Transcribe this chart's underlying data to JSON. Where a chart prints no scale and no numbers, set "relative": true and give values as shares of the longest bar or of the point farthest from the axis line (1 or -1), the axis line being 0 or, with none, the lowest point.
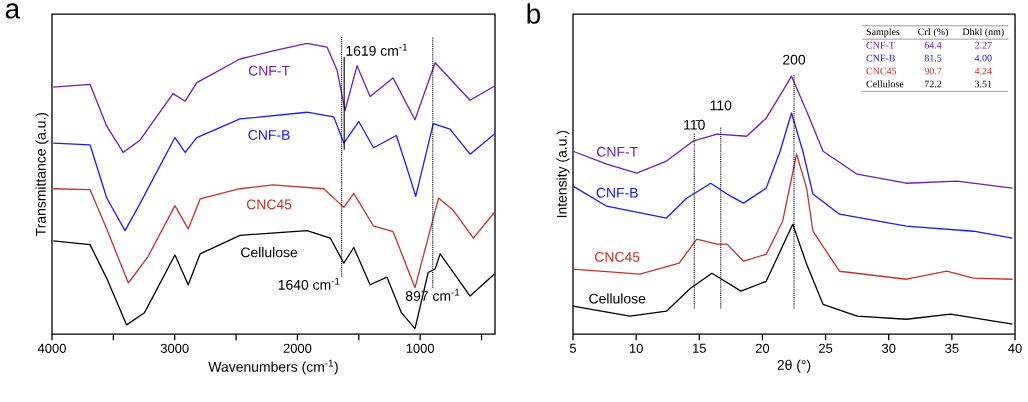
{
  "chart_data": [
    {
      "type": "line",
      "title": "a",
      "xlabel": "Wavenumbers (cm$^{-1}$)",
      "ylabel": "Transmittance (a.u.)",
      "relative": true,
      "xlim": [
        4000,
        390
      ],
      "xticks": [
        4000,
        {
          "value": 3500,
          "label": null
        },
        3000,
        {
          "value": 2500,
          "label": null
        },
        2000,
        {
          "value": 1500,
          "label": null
        },
        1000,
        {
          "value": 500,
          "label": null
        }
      ],
      "series": [
        {
          "name": "CNF-T",
          "color": "#6a1fc0",
          "x": [
            3990,
            3690,
            3554,
            3420,
            3283,
            3014,
            2915,
            2820,
            2468,
            2199,
            1922,
            1759,
            1677,
            1612,
            1514,
            1408,
            1221,
            1042,
            878,
            593,
            392
          ],
          "values": [
            0.849,
            0.859,
            0.715,
            0.625,
            0.667,
            0.827,
            0.801,
            0.865,
            0.946,
            0.974,
            1.0,
            0.987,
            0.907,
            0.769,
            0.923,
            0.817,
            0.881,
            0.737,
            0.933,
            0.804,
            0.853
          ]
        },
        {
          "name": "CNF-B",
          "color": "#1a1aff",
          "x": [
            3990,
            3690,
            3554,
            3405,
            3283,
            2998,
            2915,
            2820,
            2468,
            1922,
            1704,
            1622,
            1500,
            1380,
            1194,
            1112,
            1036,
            893,
            757,
            593,
            392
          ],
          "values": [
            0.657,
            0.651,
            0.468,
            0.356,
            0.449,
            0.676,
            0.625,
            0.676,
            0.74,
            0.763,
            0.747,
            0.657,
            0.731,
            0.641,
            0.683,
            0.577,
            0.474,
            0.724,
            0.705,
            0.619,
            0.689
          ]
        },
        {
          "name": "CNC45",
          "color": "#c8302a",
          "x": [
            3990,
            3690,
            3554,
            3378,
            3219,
            2998,
            2890,
            2793,
            2468,
            2199,
            1786,
            1622,
            1541,
            1380,
            1221,
            1042,
            850,
            730,
            566,
            392
          ],
          "values": [
            0.5,
            0.497,
            0.362,
            0.176,
            0.266,
            0.442,
            0.362,
            0.465,
            0.5,
            0.513,
            0.5,
            0.436,
            0.484,
            0.372,
            0.353,
            0.16,
            0.468,
            0.426,
            0.33,
            0.42
          ]
        },
        {
          "name": "Cellulose",
          "color": "#000000",
          "x": [
            3990,
            3690,
            3554,
            3392,
            3246,
            2998,
            2890,
            2793,
            2468,
            1922,
            1731,
            1622,
            1541,
            1408,
            1270,
            1153,
            1042,
            935,
            878,
            837,
            593,
            392
          ],
          "values": [
            0.321,
            0.308,
            0.192,
            0.032,
            0.074,
            0.272,
            0.17,
            0.276,
            0.34,
            0.356,
            0.33,
            0.244,
            0.298,
            0.17,
            0.196,
            0.074,
            0.019,
            0.212,
            0.224,
            0.276,
            0.131,
            0.208
          ]
        }
      ],
      "ref_lines": [
        {
          "axis": "x",
          "value": 1619,
          "label": "1619 cm$^{-1}$",
          "line_style": "solid"
        },
        {
          "axis": "x",
          "value": 1640,
          "label": "1640 cm$^{-1}$",
          "line_style": "dotted"
        },
        {
          "axis": "x",
          "value": 897,
          "label": "897 cm$^{-1}$",
          "line_style": "dotted"
        }
      ]
    },
    {
      "type": "line",
      "title": "b",
      "xlabel": "2θ (°)",
      "ylabel": "Intensity (a.u.)",
      "relative": true,
      "xlim": [
        5,
        40
      ],
      "xticks": [
        5,
        10,
        15,
        20,
        25,
        30,
        35,
        40
      ],
      "series": [
        {
          "name": "CNF-T",
          "color": "#6a1fc0",
          "x": [
            5.0,
            7.67,
            10.04,
            12.4,
            14.5,
            16.4,
            18.75,
            20.3,
            21.6,
            22.3,
            23.5,
            24.8,
            27.5,
            31.4,
            35.4,
            39.8
          ],
          "values": [
            0.709,
            0.659,
            0.624,
            0.671,
            0.748,
            0.775,
            0.767,
            0.837,
            0.942,
            1.0,
            0.864,
            0.709,
            0.62,
            0.585,
            0.593,
            0.566
          ]
        },
        {
          "name": "CNF-B",
          "color": "#1a1aff",
          "x": [
            5.0,
            7.67,
            12.4,
            14.0,
            15.9,
            17.2,
            18.5,
            20.3,
            21.4,
            22.3,
            23.2,
            24.0,
            26.1,
            31.4,
            36.7,
            39.8
          ],
          "values": [
            0.574,
            0.496,
            0.45,
            0.527,
            0.585,
            0.543,
            0.508,
            0.566,
            0.709,
            0.857,
            0.709,
            0.543,
            0.465,
            0.419,
            0.399,
            0.372
          ]
        },
        {
          "name": "CNC45",
          "color": "#c8302a",
          "x": [
            5.0,
            10.3,
            13.4,
            14.8,
            16.4,
            17.2,
            18.5,
            20.3,
            21.6,
            22.7,
            23.5,
            24.0,
            26.1,
            31.4,
            34.6,
            36.7,
            39.8
          ],
          "values": [
            0.252,
            0.233,
            0.275,
            0.368,
            0.349,
            0.349,
            0.283,
            0.31,
            0.438,
            0.698,
            0.566,
            0.399,
            0.244,
            0.213,
            0.244,
            0.217,
            0.213
          ]
        },
        {
          "name": "Cellulose",
          "color": "#000000",
          "x": [
            5.0,
            9.5,
            12.4,
            14.3,
            16.0,
            18.3,
            20.3,
            22.4,
            23.5,
            24.8,
            27.5,
            31.4,
            34.9,
            39.8
          ],
          "values": [
            0.109,
            0.07,
            0.089,
            0.178,
            0.236,
            0.167,
            0.205,
            0.426,
            0.271,
            0.116,
            0.07,
            0.058,
            0.078,
            0.039
          ]
        }
      ],
      "ref_lines": [
        {
          "axis": "x",
          "value": 14.6,
          "line_style": "dotted"
        },
        {
          "axis": "x",
          "value": 16.7,
          "line_style": "dotted"
        },
        {
          "axis": "x",
          "value": 22.5,
          "line_style": "dotted"
        }
      ],
      "annotations": [
        {
          "text": "11̄0",
          "x": 14.6,
          "y": 0.748
        },
        {
          "text": "110",
          "x": 16.7,
          "y": 0.775
        },
        {
          "text": "200",
          "x": 22.5,
          "y": 1.0
        },
        "Samples",
        "CrI (%)",
        "Dhkl (nm)",
        "CNF-T",
        "64.4",
        "2.27",
        "CNF-B",
        "81.5",
        "4.00",
        "CNC45",
        "90.7",
        "4.24",
        "Cellulose",
        "72.2",
        "3.51"
      ]
    }
  ]
}
